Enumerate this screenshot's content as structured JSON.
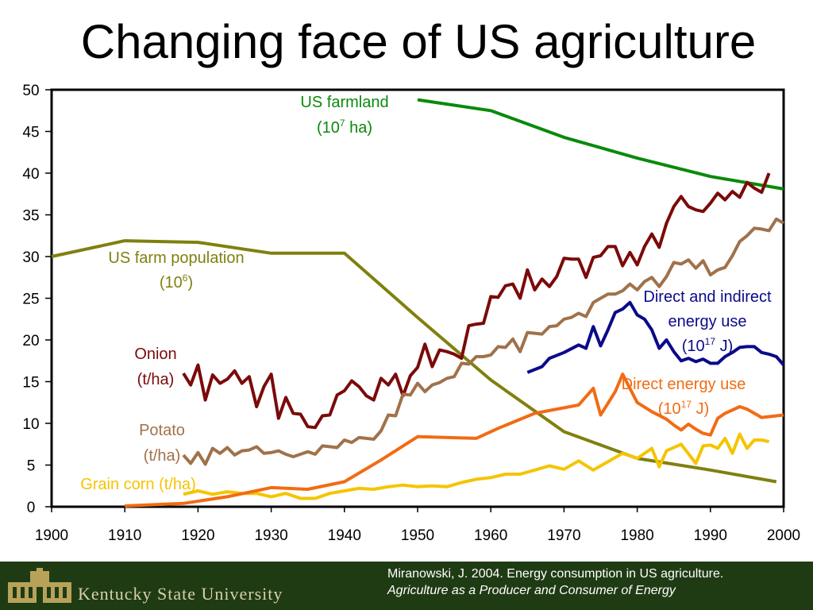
{
  "slide": {
    "title": "Changing face of US agriculture",
    "footer": {
      "university": "Kentucky State University",
      "citation_line1": "Miranowski, J. 2004. Energy consumption in US agriculture.",
      "citation_line2": "Agriculture as a Producer and Consumer of Energy"
    }
  },
  "chart_data": {
    "type": "line",
    "title": "Changing face of US agriculture",
    "xlabel": "",
    "ylabel": "",
    "xlim": [
      1900,
      2000
    ],
    "ylim": [
      0,
      50
    ],
    "x_ticks": [
      1900,
      1910,
      1920,
      1930,
      1940,
      1950,
      1960,
      1970,
      1980,
      1990,
      2000
    ],
    "y_ticks": [
      0,
      5,
      10,
      15,
      20,
      25,
      30,
      35,
      40,
      45,
      50
    ],
    "grid": false,
    "legend": "none (direct labels)",
    "series": [
      {
        "label_line1": "US farmland",
        "label_line2": "(10^7 ha)",
        "color": "#0a8a0a",
        "points": [
          [
            1950,
            48.8
          ],
          [
            1960,
            47.5
          ],
          [
            1970,
            44.3
          ],
          [
            1980,
            41.8
          ],
          [
            1990,
            39.6
          ],
          [
            2000,
            38.1
          ]
        ]
      },
      {
        "label_line1": "US farm population",
        "label_line2": "(10^6)",
        "color": "#808010",
        "points": [
          [
            1900,
            30.0
          ],
          [
            1910,
            31.9
          ],
          [
            1920,
            31.7
          ],
          [
            1930,
            30.4
          ],
          [
            1940,
            30.4
          ],
          [
            1950,
            22.7
          ],
          [
            1960,
            15.2
          ],
          [
            1970,
            9.0
          ],
          [
            1980,
            5.8
          ],
          [
            1990,
            4.4
          ],
          [
            1999,
            3.0
          ]
        ]
      },
      {
        "label_line1": "Onion",
        "label_line2": "(t/ha)",
        "color": "#7b0a0a",
        "points": [
          [
            1918,
            16.0
          ],
          [
            1919,
            14.6
          ],
          [
            1920,
            17.0
          ],
          [
            1921,
            12.8
          ],
          [
            1922,
            15.8
          ],
          [
            1923,
            14.8
          ],
          [
            1924,
            15.3
          ],
          [
            1925,
            16.3
          ],
          [
            1926,
            14.8
          ],
          [
            1927,
            15.6
          ],
          [
            1928,
            12.0
          ],
          [
            1929,
            14.4
          ],
          [
            1930,
            15.9
          ],
          [
            1931,
            10.6
          ],
          [
            1932,
            13.1
          ],
          [
            1933,
            11.2
          ],
          [
            1934,
            11.1
          ],
          [
            1935,
            9.6
          ],
          [
            1936,
            9.5
          ],
          [
            1937,
            10.9
          ],
          [
            1938,
            11.0
          ],
          [
            1939,
            13.4
          ],
          [
            1940,
            13.9
          ],
          [
            1941,
            15.1
          ],
          [
            1942,
            14.4
          ],
          [
            1943,
            13.3
          ],
          [
            1944,
            12.8
          ],
          [
            1945,
            15.4
          ],
          [
            1946,
            14.6
          ],
          [
            1947,
            15.9
          ],
          [
            1948,
            13.3
          ],
          [
            1949,
            15.7
          ],
          [
            1950,
            16.7
          ],
          [
            1951,
            19.5
          ],
          [
            1952,
            16.8
          ],
          [
            1953,
            18.8
          ],
          [
            1954,
            18.6
          ],
          [
            1955,
            18.3
          ],
          [
            1956,
            17.8
          ],
          [
            1957,
            21.7
          ],
          [
            1958,
            21.9
          ],
          [
            1959,
            22.0
          ],
          [
            1960,
            25.2
          ],
          [
            1961,
            25.1
          ],
          [
            1962,
            26.5
          ],
          [
            1963,
            26.7
          ],
          [
            1964,
            25.0
          ],
          [
            1965,
            28.4
          ],
          [
            1966,
            26.0
          ],
          [
            1967,
            27.3
          ],
          [
            1968,
            26.4
          ],
          [
            1969,
            27.6
          ],
          [
            1970,
            29.8
          ],
          [
            1971,
            29.7
          ],
          [
            1972,
            29.7
          ],
          [
            1973,
            27.5
          ],
          [
            1974,
            29.9
          ],
          [
            1975,
            30.1
          ],
          [
            1976,
            31.2
          ],
          [
            1977,
            31.2
          ],
          [
            1978,
            28.9
          ],
          [
            1979,
            30.5
          ],
          [
            1980,
            29.0
          ],
          [
            1981,
            31.2
          ],
          [
            1982,
            32.7
          ],
          [
            1983,
            31.1
          ],
          [
            1984,
            34.0
          ],
          [
            1985,
            36.0
          ],
          [
            1986,
            37.2
          ],
          [
            1987,
            36.0
          ],
          [
            1988,
            35.6
          ],
          [
            1989,
            35.4
          ],
          [
            1990,
            36.4
          ],
          [
            1991,
            37.6
          ],
          [
            1992,
            36.8
          ],
          [
            1993,
            37.8
          ],
          [
            1994,
            37.1
          ],
          [
            1995,
            38.9
          ],
          [
            1996,
            38.2
          ],
          [
            1997,
            37.7
          ],
          [
            1998,
            40.0
          ]
        ]
      },
      {
        "label_line1": "Potato",
        "label_line2": "(t/ha)",
        "color": "#a0724a",
        "points": [
          [
            1918,
            6.2
          ],
          [
            1919,
            5.2
          ],
          [
            1920,
            6.5
          ],
          [
            1921,
            5.1
          ],
          [
            1922,
            7.0
          ],
          [
            1923,
            6.4
          ],
          [
            1924,
            7.1
          ],
          [
            1925,
            6.2
          ],
          [
            1926,
            6.7
          ],
          [
            1927,
            6.8
          ],
          [
            1928,
            7.2
          ],
          [
            1929,
            6.4
          ],
          [
            1930,
            6.5
          ],
          [
            1931,
            6.7
          ],
          [
            1932,
            6.3
          ],
          [
            1933,
            6.0
          ],
          [
            1934,
            6.3
          ],
          [
            1935,
            6.6
          ],
          [
            1936,
            6.3
          ],
          [
            1937,
            7.3
          ],
          [
            1938,
            7.2
          ],
          [
            1939,
            7.1
          ],
          [
            1940,
            8.0
          ],
          [
            1941,
            7.7
          ],
          [
            1942,
            8.3
          ],
          [
            1943,
            8.2
          ],
          [
            1944,
            8.1
          ],
          [
            1945,
            9.1
          ],
          [
            1946,
            11.0
          ],
          [
            1947,
            10.9
          ],
          [
            1948,
            13.5
          ],
          [
            1949,
            13.4
          ],
          [
            1950,
            14.8
          ],
          [
            1951,
            13.8
          ],
          [
            1952,
            14.6
          ],
          [
            1953,
            14.9
          ],
          [
            1954,
            15.4
          ],
          [
            1955,
            15.6
          ],
          [
            1956,
            17.2
          ],
          [
            1957,
            17.1
          ],
          [
            1958,
            18.0
          ],
          [
            1959,
            18.0
          ],
          [
            1960,
            18.2
          ],
          [
            1961,
            19.2
          ],
          [
            1962,
            19.1
          ],
          [
            1963,
            20.1
          ],
          [
            1964,
            18.6
          ],
          [
            1965,
            20.9
          ],
          [
            1966,
            20.8
          ],
          [
            1967,
            20.7
          ],
          [
            1968,
            21.6
          ],
          [
            1969,
            21.7
          ],
          [
            1970,
            22.5
          ],
          [
            1971,
            22.7
          ],
          [
            1972,
            23.2
          ],
          [
            1973,
            22.8
          ],
          [
            1974,
            24.5
          ],
          [
            1975,
            25.0
          ],
          [
            1976,
            25.5
          ],
          [
            1977,
            25.5
          ],
          [
            1978,
            25.9
          ],
          [
            1979,
            26.7
          ],
          [
            1980,
            26.0
          ],
          [
            1981,
            27.0
          ],
          [
            1982,
            27.5
          ],
          [
            1983,
            26.4
          ],
          [
            1984,
            27.6
          ],
          [
            1985,
            29.3
          ],
          [
            1986,
            29.1
          ],
          [
            1987,
            29.6
          ],
          [
            1988,
            28.6
          ],
          [
            1989,
            29.5
          ],
          [
            1990,
            27.8
          ],
          [
            1991,
            28.4
          ],
          [
            1992,
            28.7
          ],
          [
            1993,
            30.1
          ],
          [
            1994,
            31.8
          ],
          [
            1995,
            32.5
          ],
          [
            1996,
            33.4
          ],
          [
            1997,
            33.3
          ],
          [
            1998,
            33.1
          ],
          [
            1999,
            34.5
          ],
          [
            2000,
            34.0
          ]
        ]
      },
      {
        "label_line1": "Grain corn (t/ha)",
        "label_line2": "",
        "color": "#f5c400",
        "points": [
          [
            1918,
            1.5
          ],
          [
            1920,
            1.9
          ],
          [
            1922,
            1.5
          ],
          [
            1924,
            1.8
          ],
          [
            1926,
            1.6
          ],
          [
            1928,
            1.6
          ],
          [
            1930,
            1.2
          ],
          [
            1932,
            1.6
          ],
          [
            1934,
            1.0
          ],
          [
            1936,
            1.0
          ],
          [
            1938,
            1.6
          ],
          [
            1940,
            1.9
          ],
          [
            1942,
            2.2
          ],
          [
            1944,
            2.1
          ],
          [
            1946,
            2.4
          ],
          [
            1948,
            2.6
          ],
          [
            1950,
            2.4
          ],
          [
            1952,
            2.5
          ],
          [
            1954,
            2.4
          ],
          [
            1956,
            2.9
          ],
          [
            1958,
            3.3
          ],
          [
            1960,
            3.5
          ],
          [
            1962,
            3.9
          ],
          [
            1964,
            3.9
          ],
          [
            1966,
            4.4
          ],
          [
            1968,
            4.9
          ],
          [
            1970,
            4.5
          ],
          [
            1972,
            5.5
          ],
          [
            1974,
            4.4
          ],
          [
            1976,
            5.4
          ],
          [
            1978,
            6.4
          ],
          [
            1980,
            5.8
          ],
          [
            1982,
            7.0
          ],
          [
            1983,
            4.8
          ],
          [
            1984,
            6.7
          ],
          [
            1986,
            7.5
          ],
          [
            1988,
            5.2
          ],
          [
            1989,
            7.3
          ],
          [
            1990,
            7.4
          ],
          [
            1991,
            7.0
          ],
          [
            1992,
            8.2
          ],
          [
            1993,
            6.4
          ],
          [
            1994,
            8.7
          ],
          [
            1995,
            7.0
          ],
          [
            1996,
            8.0
          ],
          [
            1997,
            8.0
          ],
          [
            1998,
            7.8
          ]
        ]
      },
      {
        "label_line1": "Direct and indirect",
        "label_line2": "energy use",
        "label_line3": "(10^17 J)",
        "color": "#0a0a8a",
        "points": [
          [
            1965,
            16.1
          ],
          [
            1967,
            16.8
          ],
          [
            1968,
            17.8
          ],
          [
            1970,
            18.5
          ],
          [
            1972,
            19.4
          ],
          [
            1973,
            19.0
          ],
          [
            1974,
            21.6
          ],
          [
            1975,
            19.3
          ],
          [
            1976,
            21.2
          ],
          [
            1977,
            23.3
          ],
          [
            1978,
            23.7
          ],
          [
            1979,
            24.5
          ],
          [
            1980,
            23.0
          ],
          [
            1981,
            22.5
          ],
          [
            1982,
            21.2
          ],
          [
            1983,
            19.0
          ],
          [
            1984,
            20.0
          ],
          [
            1985,
            18.6
          ],
          [
            1986,
            17.5
          ],
          [
            1987,
            17.8
          ],
          [
            1988,
            17.4
          ],
          [
            1989,
            17.7
          ],
          [
            1990,
            17.2
          ],
          [
            1991,
            17.2
          ],
          [
            1992,
            18.0
          ],
          [
            1993,
            18.5
          ],
          [
            1994,
            19.1
          ],
          [
            1995,
            19.2
          ],
          [
            1996,
            19.2
          ],
          [
            1997,
            18.5
          ],
          [
            1998,
            18.3
          ],
          [
            1999,
            18.0
          ],
          [
            2000,
            17.0
          ]
        ]
      },
      {
        "label_line1": "Direct energy use",
        "label_line2": "(10^17 J)",
        "color": "#f26b14",
        "points": [
          [
            1910,
            0.1
          ],
          [
            1918,
            0.4
          ],
          [
            1924,
            1.2
          ],
          [
            1930,
            2.3
          ],
          [
            1935,
            2.1
          ],
          [
            1940,
            3.0
          ],
          [
            1945,
            5.6
          ],
          [
            1950,
            8.4
          ],
          [
            1958,
            8.2
          ],
          [
            1961,
            9.4
          ],
          [
            1966,
            11.2
          ],
          [
            1972,
            12.2
          ],
          [
            1974,
            14.2
          ],
          [
            1975,
            11.0
          ],
          [
            1977,
            13.8
          ],
          [
            1978,
            15.9
          ],
          [
            1980,
            12.5
          ],
          [
            1982,
            11.4
          ],
          [
            1984,
            10.5
          ],
          [
            1985,
            9.8
          ],
          [
            1986,
            9.2
          ],
          [
            1987,
            9.9
          ],
          [
            1988,
            9.3
          ],
          [
            1989,
            8.8
          ],
          [
            1990,
            8.6
          ],
          [
            1991,
            10.6
          ],
          [
            1992,
            11.2
          ],
          [
            1994,
            12.0
          ],
          [
            1995,
            11.7
          ],
          [
            1997,
            10.7
          ],
          [
            2000,
            11.0
          ]
        ]
      }
    ]
  }
}
